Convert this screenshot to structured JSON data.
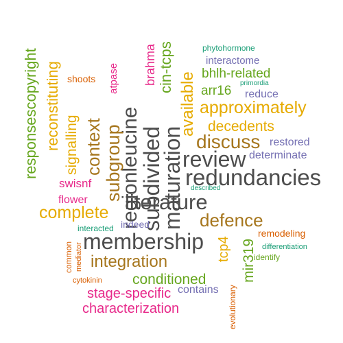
{
  "palette": {
    "gray": "#4d4d4d",
    "brown": "#a6761d",
    "orange": "#e6ab02",
    "magenta": "#e7298a",
    "green": "#66a61e",
    "teal": "#1b9e77",
    "purple": "#7570b3",
    "rust": "#d95f02"
  },
  "words": [
    {
      "id": "literature",
      "text": "literature"
    },
    {
      "id": "redundancies",
      "text": "redundancies"
    },
    {
      "id": "membership",
      "text": "membership"
    },
    {
      "id": "review",
      "text": "review"
    },
    {
      "id": "maturation",
      "text": "maturation"
    },
    {
      "id": "subdivided",
      "text": "subdivided"
    },
    {
      "id": "regionleucine",
      "text": "regionleucine"
    },
    {
      "id": "discuss",
      "text": "discuss"
    },
    {
      "id": "defence",
      "text": "defence"
    },
    {
      "id": "integration",
      "text": "integration"
    },
    {
      "id": "context",
      "text": "context"
    },
    {
      "id": "approximately",
      "text": "approximately"
    },
    {
      "id": "complete",
      "text": "complete"
    },
    {
      "id": "subgroup",
      "text": "subgroup"
    },
    {
      "id": "available",
      "text": "available"
    },
    {
      "id": "decedents",
      "text": "decedents"
    },
    {
      "id": "conditioned",
      "text": "conditioned"
    },
    {
      "id": "characterization",
      "text": "characterization"
    },
    {
      "id": "stage-specific",
      "text": "stage-specific"
    },
    {
      "id": "responsescopyright",
      "text": "responsescopyright"
    },
    {
      "id": "reconstituting",
      "text": "reconstituting"
    },
    {
      "id": "signalling",
      "text": "signalling"
    },
    {
      "id": "cin-tcps",
      "text": "cin-tcps"
    },
    {
      "id": "brahma",
      "text": "brahma"
    },
    {
      "id": "bhlh-related",
      "text": "bhlh-related"
    },
    {
      "id": "arr16",
      "text": "arr16"
    },
    {
      "id": "mir319",
      "text": "mir319"
    },
    {
      "id": "tcp4",
      "text": "tcp4"
    },
    {
      "id": "swisnf",
      "text": "swisnf"
    },
    {
      "id": "flower",
      "text": "flower"
    },
    {
      "id": "determinate",
      "text": "determinate"
    },
    {
      "id": "restored",
      "text": "restored"
    },
    {
      "id": "reduce",
      "text": "reduce"
    },
    {
      "id": "interactome",
      "text": "interactome"
    },
    {
      "id": "contains",
      "text": "contains"
    },
    {
      "id": "remodeling",
      "text": "remodeling"
    },
    {
      "id": "atpase",
      "text": "atpase"
    },
    {
      "id": "shoots",
      "text": "shoots"
    },
    {
      "id": "indeed",
      "text": "indeed"
    },
    {
      "id": "phytohormone",
      "text": "phytohormone"
    },
    {
      "id": "interacted",
      "text": "interacted"
    },
    {
      "id": "evolutionary",
      "text": "evolutionary"
    },
    {
      "id": "common",
      "text": "common"
    },
    {
      "id": "mediator",
      "text": "mediator"
    },
    {
      "id": "cytokinin",
      "text": "cytokinin"
    },
    {
      "id": "identify",
      "text": "identify"
    },
    {
      "id": "differentiation",
      "text": "differentiation"
    },
    {
      "id": "primordia",
      "text": "primordia"
    },
    {
      "id": "described",
      "text": "described"
    }
  ]
}
